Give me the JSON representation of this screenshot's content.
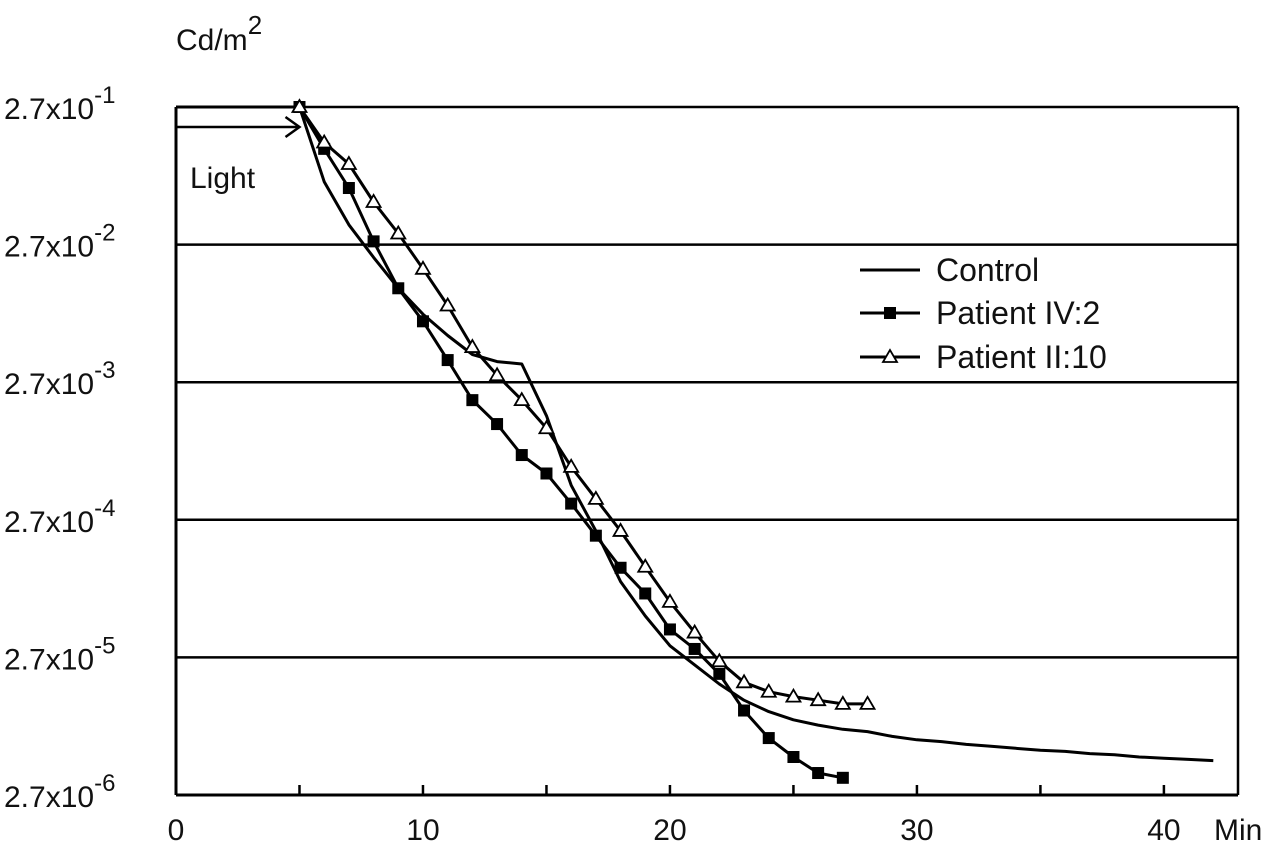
{
  "chart_data": {
    "type": "line",
    "title": "",
    "ylabel": "Cd/m",
    "ylabel_sup": "2",
    "xlabel": "Min",
    "x_range": [
      0,
      43
    ],
    "y_scale": "log",
    "y_ticks": [
      {
        "value": 0.27,
        "base": "2.7x10",
        "exp": "-1"
      },
      {
        "value": 0.027,
        "base": "2.7x10",
        "exp": "-2"
      },
      {
        "value": 0.0027,
        "base": "2.7x10",
        "exp": "-3"
      },
      {
        "value": 0.00027,
        "base": "2.7x10",
        "exp": "-4"
      },
      {
        "value": 2.7e-05,
        "base": "2.7x10",
        "exp": "-5"
      },
      {
        "value": 2.7e-06,
        "base": "2.7x10",
        "exp": "-6"
      }
    ],
    "x_ticks": [
      0,
      10,
      20,
      30,
      40
    ],
    "grid": "horizontal",
    "annotation": {
      "label": "Light",
      "from_x": 0,
      "to_x": 5,
      "level": 0.27
    },
    "legend_position": "right-middle",
    "series": [
      {
        "name": "Control",
        "marker": "none",
        "x": [
          0,
          5,
          6,
          7,
          8,
          9,
          10,
          11,
          12,
          13,
          14,
          15,
          16,
          17,
          18,
          19,
          20,
          21,
          22,
          23,
          24,
          25,
          26,
          27,
          28,
          29,
          30,
          31,
          32,
          33,
          34,
          35,
          36,
          37,
          38,
          39,
          40,
          41,
          42
        ],
        "y": [
          0.27,
          0.27,
          0.0774,
          0.0376,
          0.0218,
          0.013,
          0.00843,
          0.0059,
          0.00429,
          0.00381,
          0.00366,
          0.00154,
          0.000481,
          0.000224,
          9.6e-05,
          5.4e-05,
          3.28e-05,
          2.38e-05,
          1.73e-05,
          1.32e-05,
          1.09e-05,
          9.5e-06,
          8.7e-06,
          8.1e-06,
          7.8e-06,
          7.2e-06,
          6.8e-06,
          6.6e-06,
          6.3e-06,
          6.1e-06,
          5.9e-06,
          5.7e-06,
          5.6e-06,
          5.4e-06,
          5.3e-06,
          5.1e-06,
          5e-06,
          4.9e-06,
          4.8e-06
        ]
      },
      {
        "name": "Patient IV:2",
        "marker": "filled-square",
        "x": [
          5,
          6,
          7,
          8,
          9,
          10,
          11,
          12,
          13,
          14,
          15,
          16,
          17,
          18,
          19,
          20,
          21,
          22,
          23,
          24,
          25,
          26,
          27
        ],
        "y": [
          0.27,
          0.134,
          0.0696,
          0.0285,
          0.013,
          0.00748,
          0.00391,
          0.002,
          0.00134,
          0.000798,
          0.000586,
          0.000354,
          0.000207,
          0.000121,
          7.87e-05,
          4.31e-05,
          3.11e-05,
          2.05e-05,
          1.11e-05,
          7e-06,
          5.1e-06,
          3.9e-06,
          3.6e-06
        ]
      },
      {
        "name": "Patient II:10",
        "marker": "open-triangle",
        "x": [
          5,
          6,
          7,
          8,
          9,
          10,
          11,
          12,
          13,
          14,
          15,
          16,
          17,
          18,
          19,
          20,
          21,
          22,
          23,
          24,
          25,
          26,
          27,
          28
        ],
        "y": [
          0.27,
          0.149,
          0.104,
          0.0551,
          0.0325,
          0.018,
          0.00974,
          0.00486,
          0.00303,
          0.002,
          0.00125,
          0.000655,
          0.000383,
          0.000224,
          0.000123,
          6.84e-05,
          4.09e-05,
          2.53e-05,
          1.78e-05,
          1.52e-05,
          1.4e-05,
          1.32e-05,
          1.24e-05,
          1.24e-05
        ]
      }
    ]
  }
}
